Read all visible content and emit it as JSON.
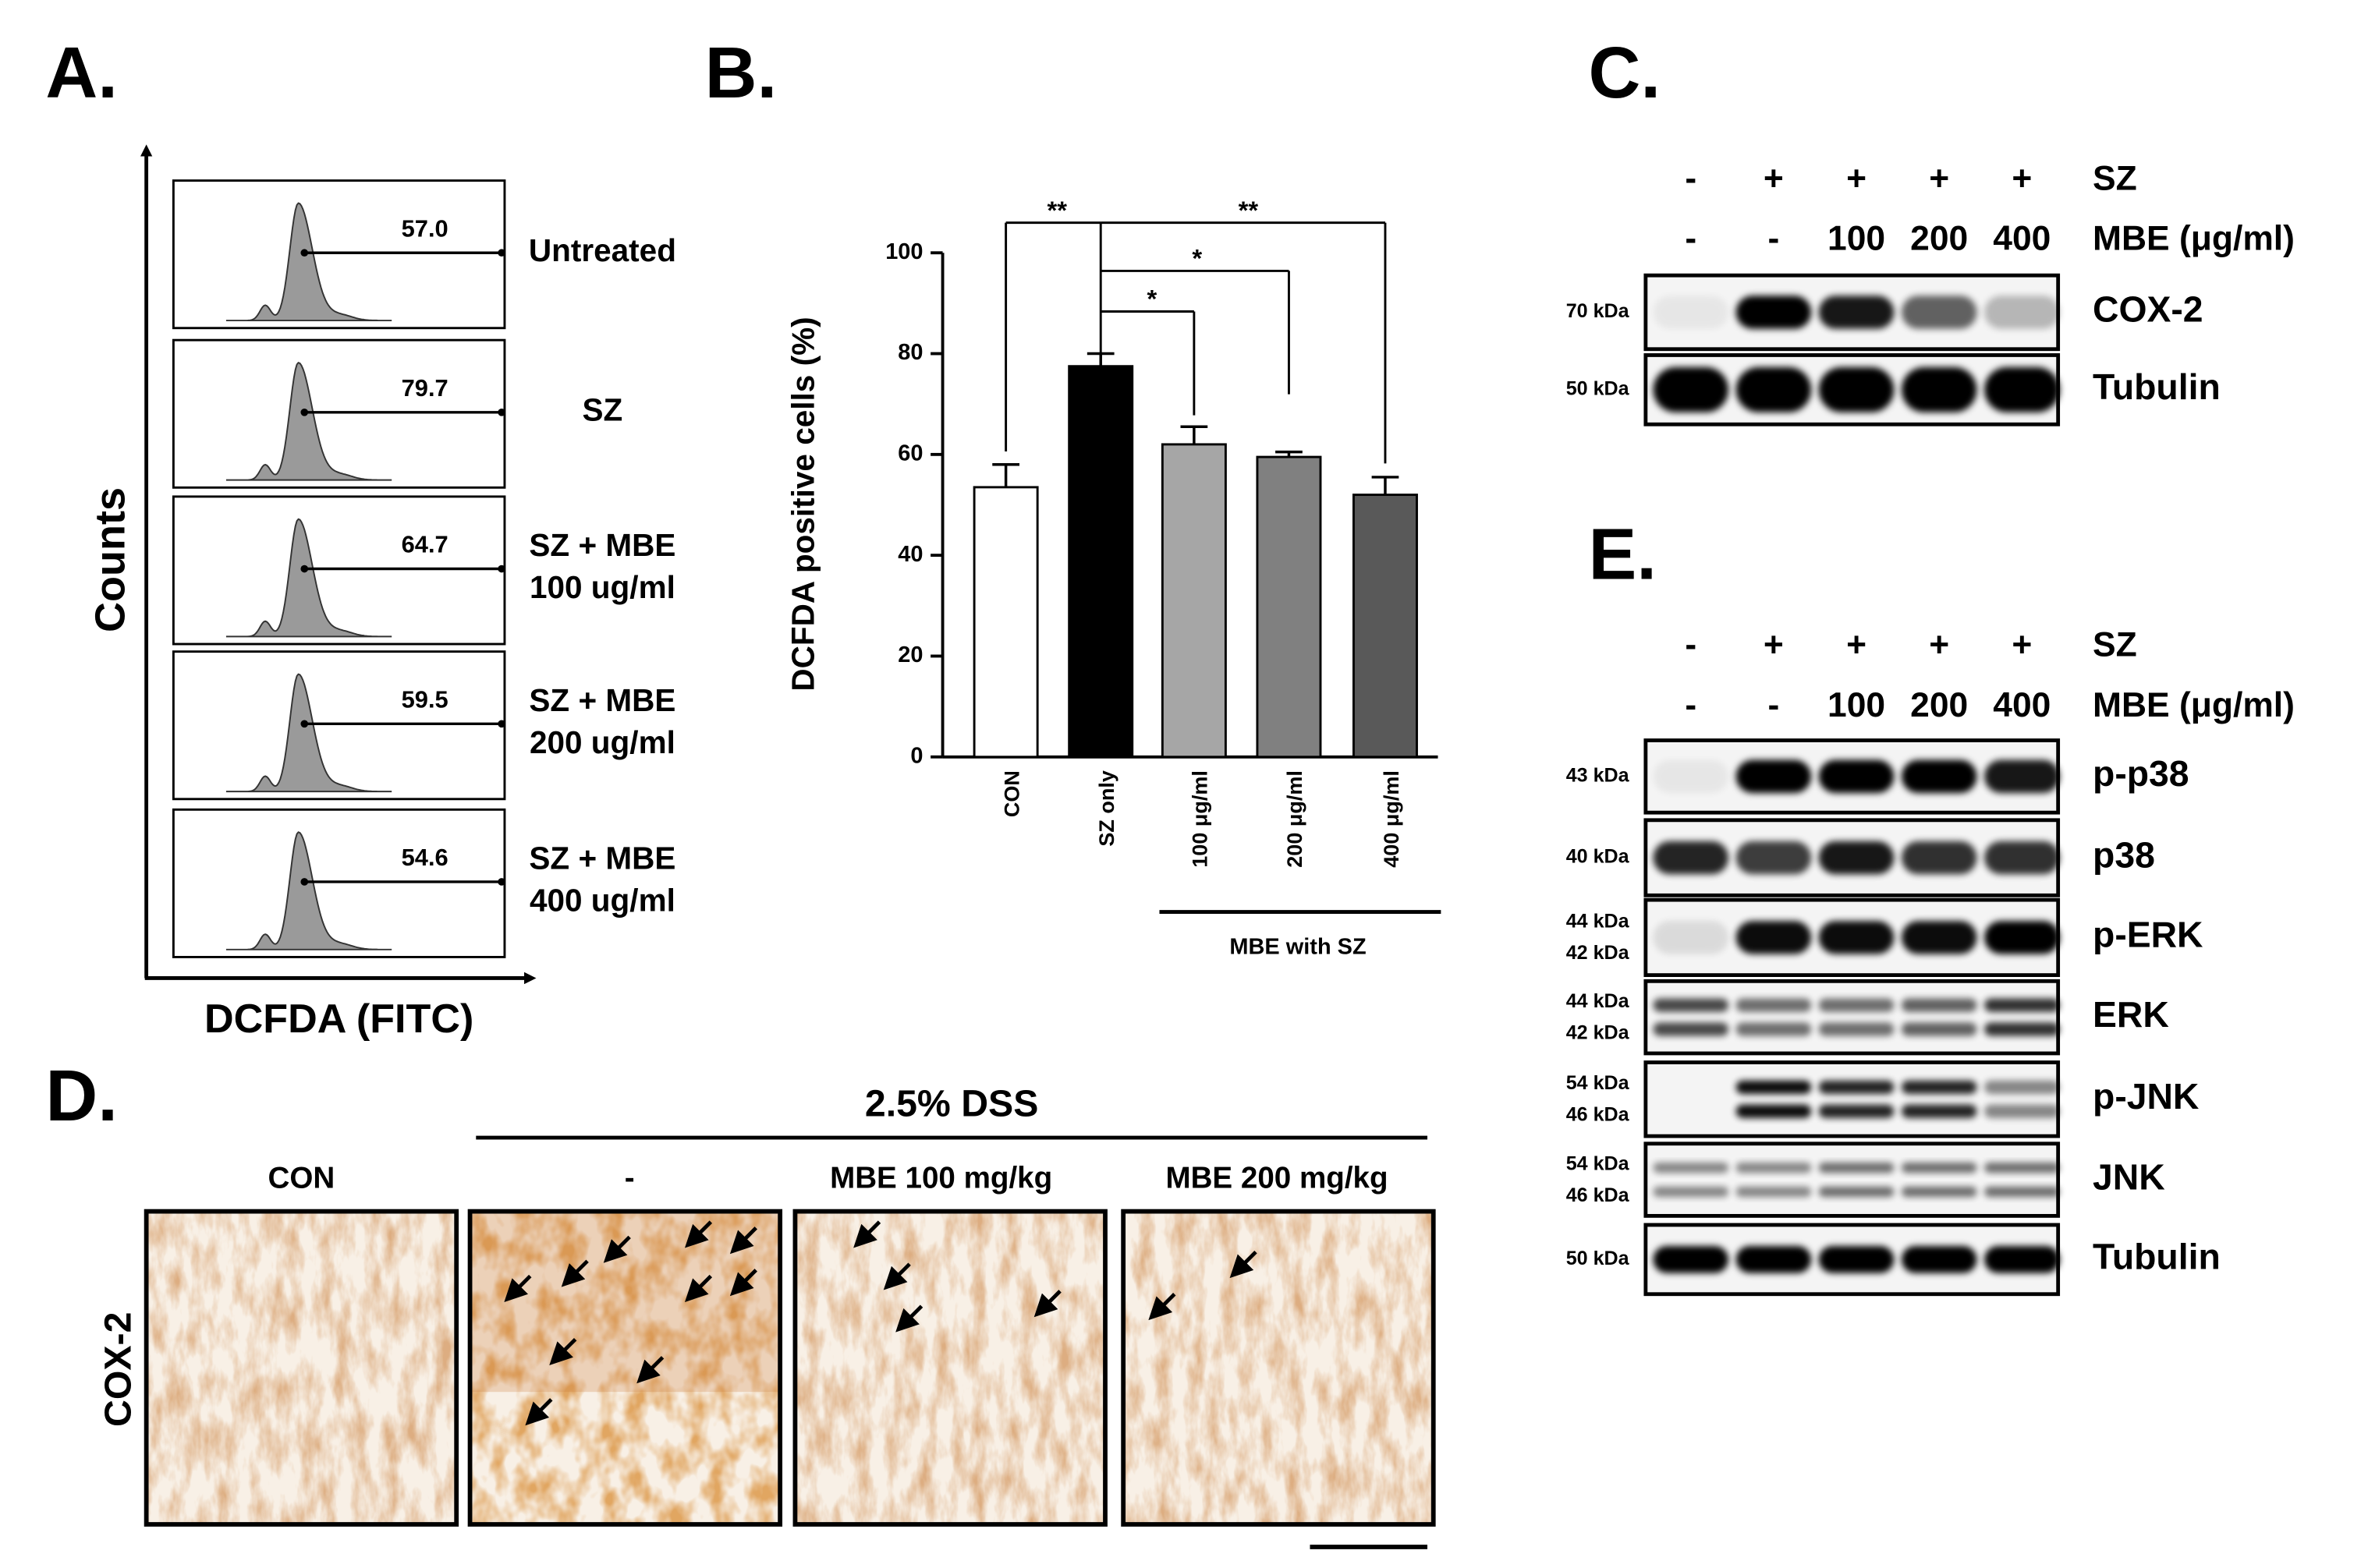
{
  "panel_a": {
    "label": "A.",
    "y_axis": "Counts",
    "x_axis": "DCFDA (FITC)",
    "histograms": [
      {
        "value": "57.0",
        "label": [
          "Untreated"
        ]
      },
      {
        "value": "79.7",
        "label": [
          "SZ"
        ]
      },
      {
        "value": "64.7",
        "label": [
          "SZ + MBE",
          "100 ug/ml"
        ]
      },
      {
        "value": "59.5",
        "label": [
          "SZ + MBE",
          "200 ug/ml"
        ]
      },
      {
        "value": "54.6",
        "label": [
          "SZ + MBE",
          "400 ug/ml"
        ]
      }
    ]
  },
  "chart_data": {
    "type": "bar",
    "panel_label": "B.",
    "y_label": "DCFDA positive cells (%)",
    "categories": [
      "CON",
      "SZ only",
      "100 μg/ml",
      "200 μg/ml",
      "400 μg/ml"
    ],
    "values": [
      53.5,
      77.5,
      62,
      59.5,
      52
    ],
    "errors": [
      4.5,
      2.5,
      3.5,
      1,
      3.5
    ],
    "colors": [
      "#ffffff",
      "#000000",
      "#a6a6a6",
      "#808080",
      "#595959"
    ],
    "ylim": [
      0,
      100
    ],
    "yticks": [
      0,
      20,
      40,
      60,
      80,
      100
    ],
    "group_label": "MBE with SZ",
    "significance": [
      "**",
      "*",
      "*",
      "**"
    ]
  },
  "panel_c": {
    "label": "C.",
    "treatments": [
      {
        "name": "SZ",
        "lanes": [
          "-",
          "+",
          "+",
          "+",
          "+"
        ]
      },
      {
        "name": "MBE (μg/ml)",
        "lanes": [
          "-",
          "-",
          "100",
          "200",
          "400"
        ]
      }
    ],
    "blots": [
      {
        "name": "COX-2",
        "markers": [
          "70 kDa"
        ]
      },
      {
        "name": "Tubulin",
        "markers": [
          "50 kDa"
        ]
      }
    ]
  },
  "panel_d": {
    "label": "D.",
    "treatment": "2.5% DSS",
    "row_label": "COX-2",
    "columns": [
      {
        "label": "CON",
        "color": "#000000"
      },
      {
        "label": "-",
        "color": "#e8141e"
      },
      {
        "label": "MBE 100 mg/kg",
        "color": "#f08a3c"
      },
      {
        "label": "MBE 200 mg/kg",
        "color": "#1a1aff"
      }
    ]
  },
  "panel_e": {
    "label": "E.",
    "treatments": [
      {
        "name": "SZ",
        "lanes": [
          "-",
          "+",
          "+",
          "+",
          "+"
        ]
      },
      {
        "name": "MBE (μg/ml)",
        "lanes": [
          "-",
          "-",
          "100",
          "200",
          "400"
        ]
      }
    ],
    "blots": [
      {
        "name": "p-p38",
        "markers": [
          "43 kDa"
        ]
      },
      {
        "name": "p38",
        "markers": [
          "40 kDa"
        ]
      },
      {
        "name": "p-ERK",
        "markers": [
          "44 kDa",
          "42 kDa"
        ]
      },
      {
        "name": "ERK",
        "markers": [
          "44 kDa",
          "42 kDa"
        ]
      },
      {
        "name": "p-JNK",
        "markers": [
          "54 kDa",
          "46 kDa"
        ]
      },
      {
        "name": "JNK",
        "markers": [
          "54 kDa",
          "46 kDa"
        ]
      },
      {
        "name": "Tubulin",
        "markers": [
          "50 kDa"
        ]
      }
    ]
  }
}
